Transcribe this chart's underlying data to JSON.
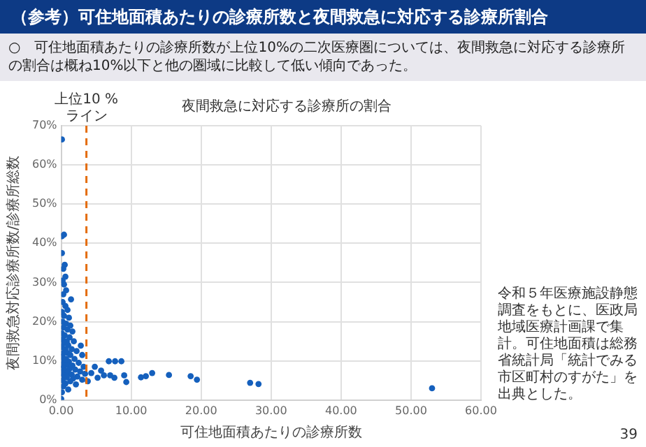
{
  "chart_data": {
    "type": "scatter",
    "title": "（参考）可住地面積あたりの診療所数と夜間救急に対応する診療所割合",
    "subtitle": "○　可住地面積あたりの診療所数が上位10%の二次医療圏については、夜間救急に対応する診療所の割合は概ね10%以下と他の圏域に比較して低い傾向であった。",
    "xlabel": "可住地面積あたりの診療所数",
    "ylabel": "夜間救急対応診療所数/診療所総数",
    "annotations": [
      "夜間救急に対応する診療所の割合",
      "令和５年医療施設静態調査をもとに、医政局地域医療計画課で集計。可住地面積は総務省統計局「統計でみる市区町村のすがた」を出典とした。",
      "39"
    ],
    "series": [
      {
        "color": "#1560bd",
        "x": [
          0.1,
          0.1,
          0.4,
          0.1,
          0.5,
          0.3,
          0.6,
          0.2,
          0.4,
          0.7,
          0.3,
          1.4,
          0.2,
          0.6,
          0.9,
          0.1,
          0.4,
          1.1,
          0.2,
          0.7,
          1.3,
          0.3,
          0.9,
          1.6,
          0.1,
          0.5,
          1.2,
          0.2,
          0.8,
          1.8,
          0.4,
          1.0,
          2.8,
          0.1,
          0.6,
          1.5,
          2.2,
          0.3,
          0.9,
          3.0,
          1.3,
          0.2,
          0.7,
          1.9,
          0.4,
          1.1,
          2.5,
          0.1,
          0.8,
          1.6,
          3.2,
          0.3,
          1.2,
          2.0,
          0.6,
          2.7,
          0.1,
          1.0,
          3.4,
          1.5,
          0.4,
          2.3,
          0.8,
          1.7,
          3.0,
          0.2,
          1.3,
          3.8,
          0.6,
          2.1,
          0.3,
          1.0,
          0.1,
          0.0,
          4.3,
          5.2,
          4.8,
          5.7,
          6.8,
          7.7,
          8.6,
          6.1,
          7.0,
          7.6,
          9.0,
          9.3,
          11.4,
          12.1,
          13.0,
          15.4,
          18.5,
          19.4,
          27.0,
          28.2,
          53.0
        ],
        "values": [
          66.5,
          41.8,
          42.2,
          37.5,
          34.5,
          33.5,
          31.5,
          30.5,
          29.5,
          28,
          27,
          25.7,
          25,
          24,
          23,
          22.5,
          21.5,
          21,
          20,
          19.5,
          19,
          18.5,
          18,
          17.5,
          17,
          16.5,
          16,
          15.5,
          15,
          15,
          14.5,
          14,
          13.9,
          13.5,
          13,
          13,
          12.5,
          12,
          12,
          11.5,
          11.5,
          11,
          10.5,
          10.5,
          10,
          9.8,
          9.5,
          9,
          9,
          8.8,
          8.5,
          8.2,
          8,
          7.8,
          7.5,
          7.3,
          7,
          7,
          6.7,
          6.5,
          6.2,
          6,
          5.8,
          5.5,
          5.2,
          5,
          4.8,
          4.8,
          4.2,
          4,
          3.5,
          2.7,
          2,
          0.3,
          6.9,
          5.7,
          8.5,
          7.5,
          9.9,
          9.9,
          9.9,
          6.3,
          6.3,
          5.7,
          6.3,
          4.6,
          5.8,
          6.1,
          6.9,
          6.4,
          6.1,
          5.2,
          4.4,
          4.1,
          3.0
        ]
      }
    ],
    "xlim": [
      0,
      60
    ],
    "xticks": [
      {
        "value": 0,
        "label": "0.00"
      },
      {
        "value": 10,
        "label": "10.00"
      },
      {
        "value": 20,
        "label": "20.00"
      },
      {
        "value": 30,
        "label": "30.00"
      },
      {
        "value": 40,
        "label": "40.00"
      },
      {
        "value": 50,
        "label": "50.00"
      },
      {
        "value": 60,
        "label": "60.00"
      }
    ],
    "ylim": [
      0,
      70
    ],
    "yticks": [
      {
        "value": 0,
        "label": "0%"
      },
      {
        "value": 10,
        "label": "10%"
      },
      {
        "value": 20,
        "label": "20%"
      },
      {
        "value": 30,
        "label": "30%"
      },
      {
        "value": 40,
        "label": "40%"
      },
      {
        "value": 50,
        "label": "50%"
      },
      {
        "value": 60,
        "label": "60%"
      },
      {
        "value": 70,
        "label": "70%"
      }
    ],
    "ref_lines": [
      {
        "axis": "x",
        "value": 3.6,
        "label": "上位10 %\nライン",
        "color": "#e46c0a",
        "line_style": "dashed"
      }
    ],
    "grid": true,
    "legend": false,
    "marker": "circle"
  }
}
